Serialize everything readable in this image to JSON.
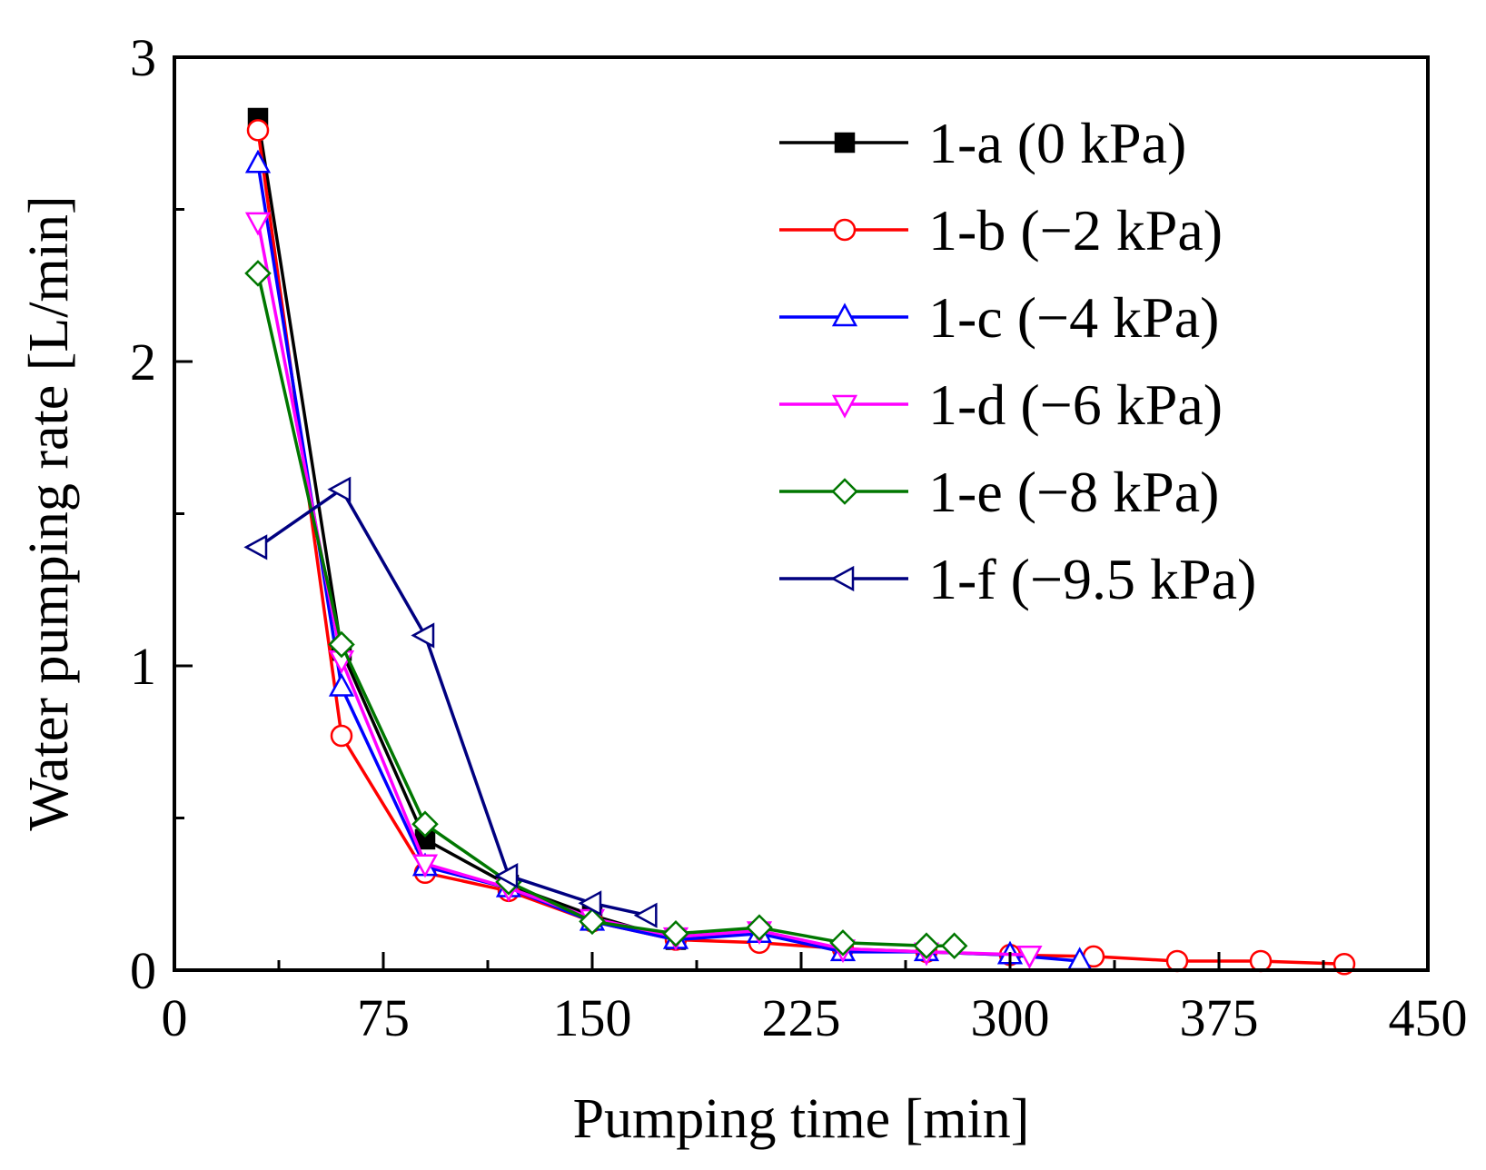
{
  "chart_data": {
    "type": "line",
    "title": "",
    "xlabel": "Pumping time [min]",
    "ylabel": "Water pumping rate [L/min]",
    "xlim": [
      0,
      450
    ],
    "ylim": [
      0,
      3
    ],
    "xticks": [
      0,
      75,
      150,
      225,
      300,
      375,
      450
    ],
    "xtick_labels": [
      "0",
      "75",
      "150",
      "225",
      "300",
      "375",
      "450"
    ],
    "yticks": [
      0,
      1,
      2,
      3
    ],
    "ytick_labels": [
      "0",
      "1",
      "2",
      "3"
    ],
    "grid": false,
    "legend_position": "top-right",
    "series": [
      {
        "name": "1-a (0 kPa)",
        "color": "#000000",
        "marker": "square-filled",
        "x": [
          30,
          60,
          90,
          120,
          150,
          180
        ],
        "y": [
          2.8,
          1.05,
          0.43,
          0.28,
          0.18,
          0.1
        ]
      },
      {
        "name": "1-b (−2 kPa)",
        "color": "#ff0000",
        "marker": "circle-open",
        "x": [
          30,
          60,
          90,
          120,
          150,
          180,
          210,
          240,
          270,
          300,
          330,
          360,
          390,
          420
        ],
        "y": [
          2.76,
          0.77,
          0.32,
          0.26,
          0.16,
          0.1,
          0.09,
          0.07,
          0.06,
          0.05,
          0.045,
          0.03,
          0.03,
          0.02
        ]
      },
      {
        "name": "1-c (−4 kPa)",
        "color": "#0000ff",
        "marker": "triangle-up-open",
        "x": [
          30,
          60,
          90,
          120,
          150,
          180,
          210,
          240,
          270,
          300,
          325
        ],
        "y": [
          2.65,
          0.93,
          0.34,
          0.27,
          0.16,
          0.1,
          0.12,
          0.06,
          0.06,
          0.05,
          0.03
        ]
      },
      {
        "name": "1-d (−6 kPa)",
        "color": "#ff00ff",
        "marker": "triangle-down-open",
        "x": [
          30,
          60,
          90,
          120,
          150,
          180,
          210,
          240,
          270,
          307
        ],
        "y": [
          2.46,
          1.02,
          0.35,
          0.27,
          0.17,
          0.11,
          0.13,
          0.07,
          0.06,
          0.05
        ]
      },
      {
        "name": "1-e (−8 kPa)",
        "color": "#007700",
        "marker": "diamond-open",
        "x": [
          30,
          60,
          90,
          120,
          150,
          180,
          210,
          240,
          270,
          280
        ],
        "y": [
          2.29,
          1.07,
          0.48,
          0.29,
          0.16,
          0.12,
          0.14,
          0.09,
          0.08,
          0.08
        ]
      },
      {
        "name": "1-f (−9.5 kPa)",
        "color": "#000080",
        "marker": "triangle-left-open",
        "x": [
          30,
          60,
          90,
          120,
          150,
          170
        ],
        "y": [
          1.39,
          1.58,
          1.1,
          0.31,
          0.22,
          0.18
        ]
      }
    ]
  }
}
